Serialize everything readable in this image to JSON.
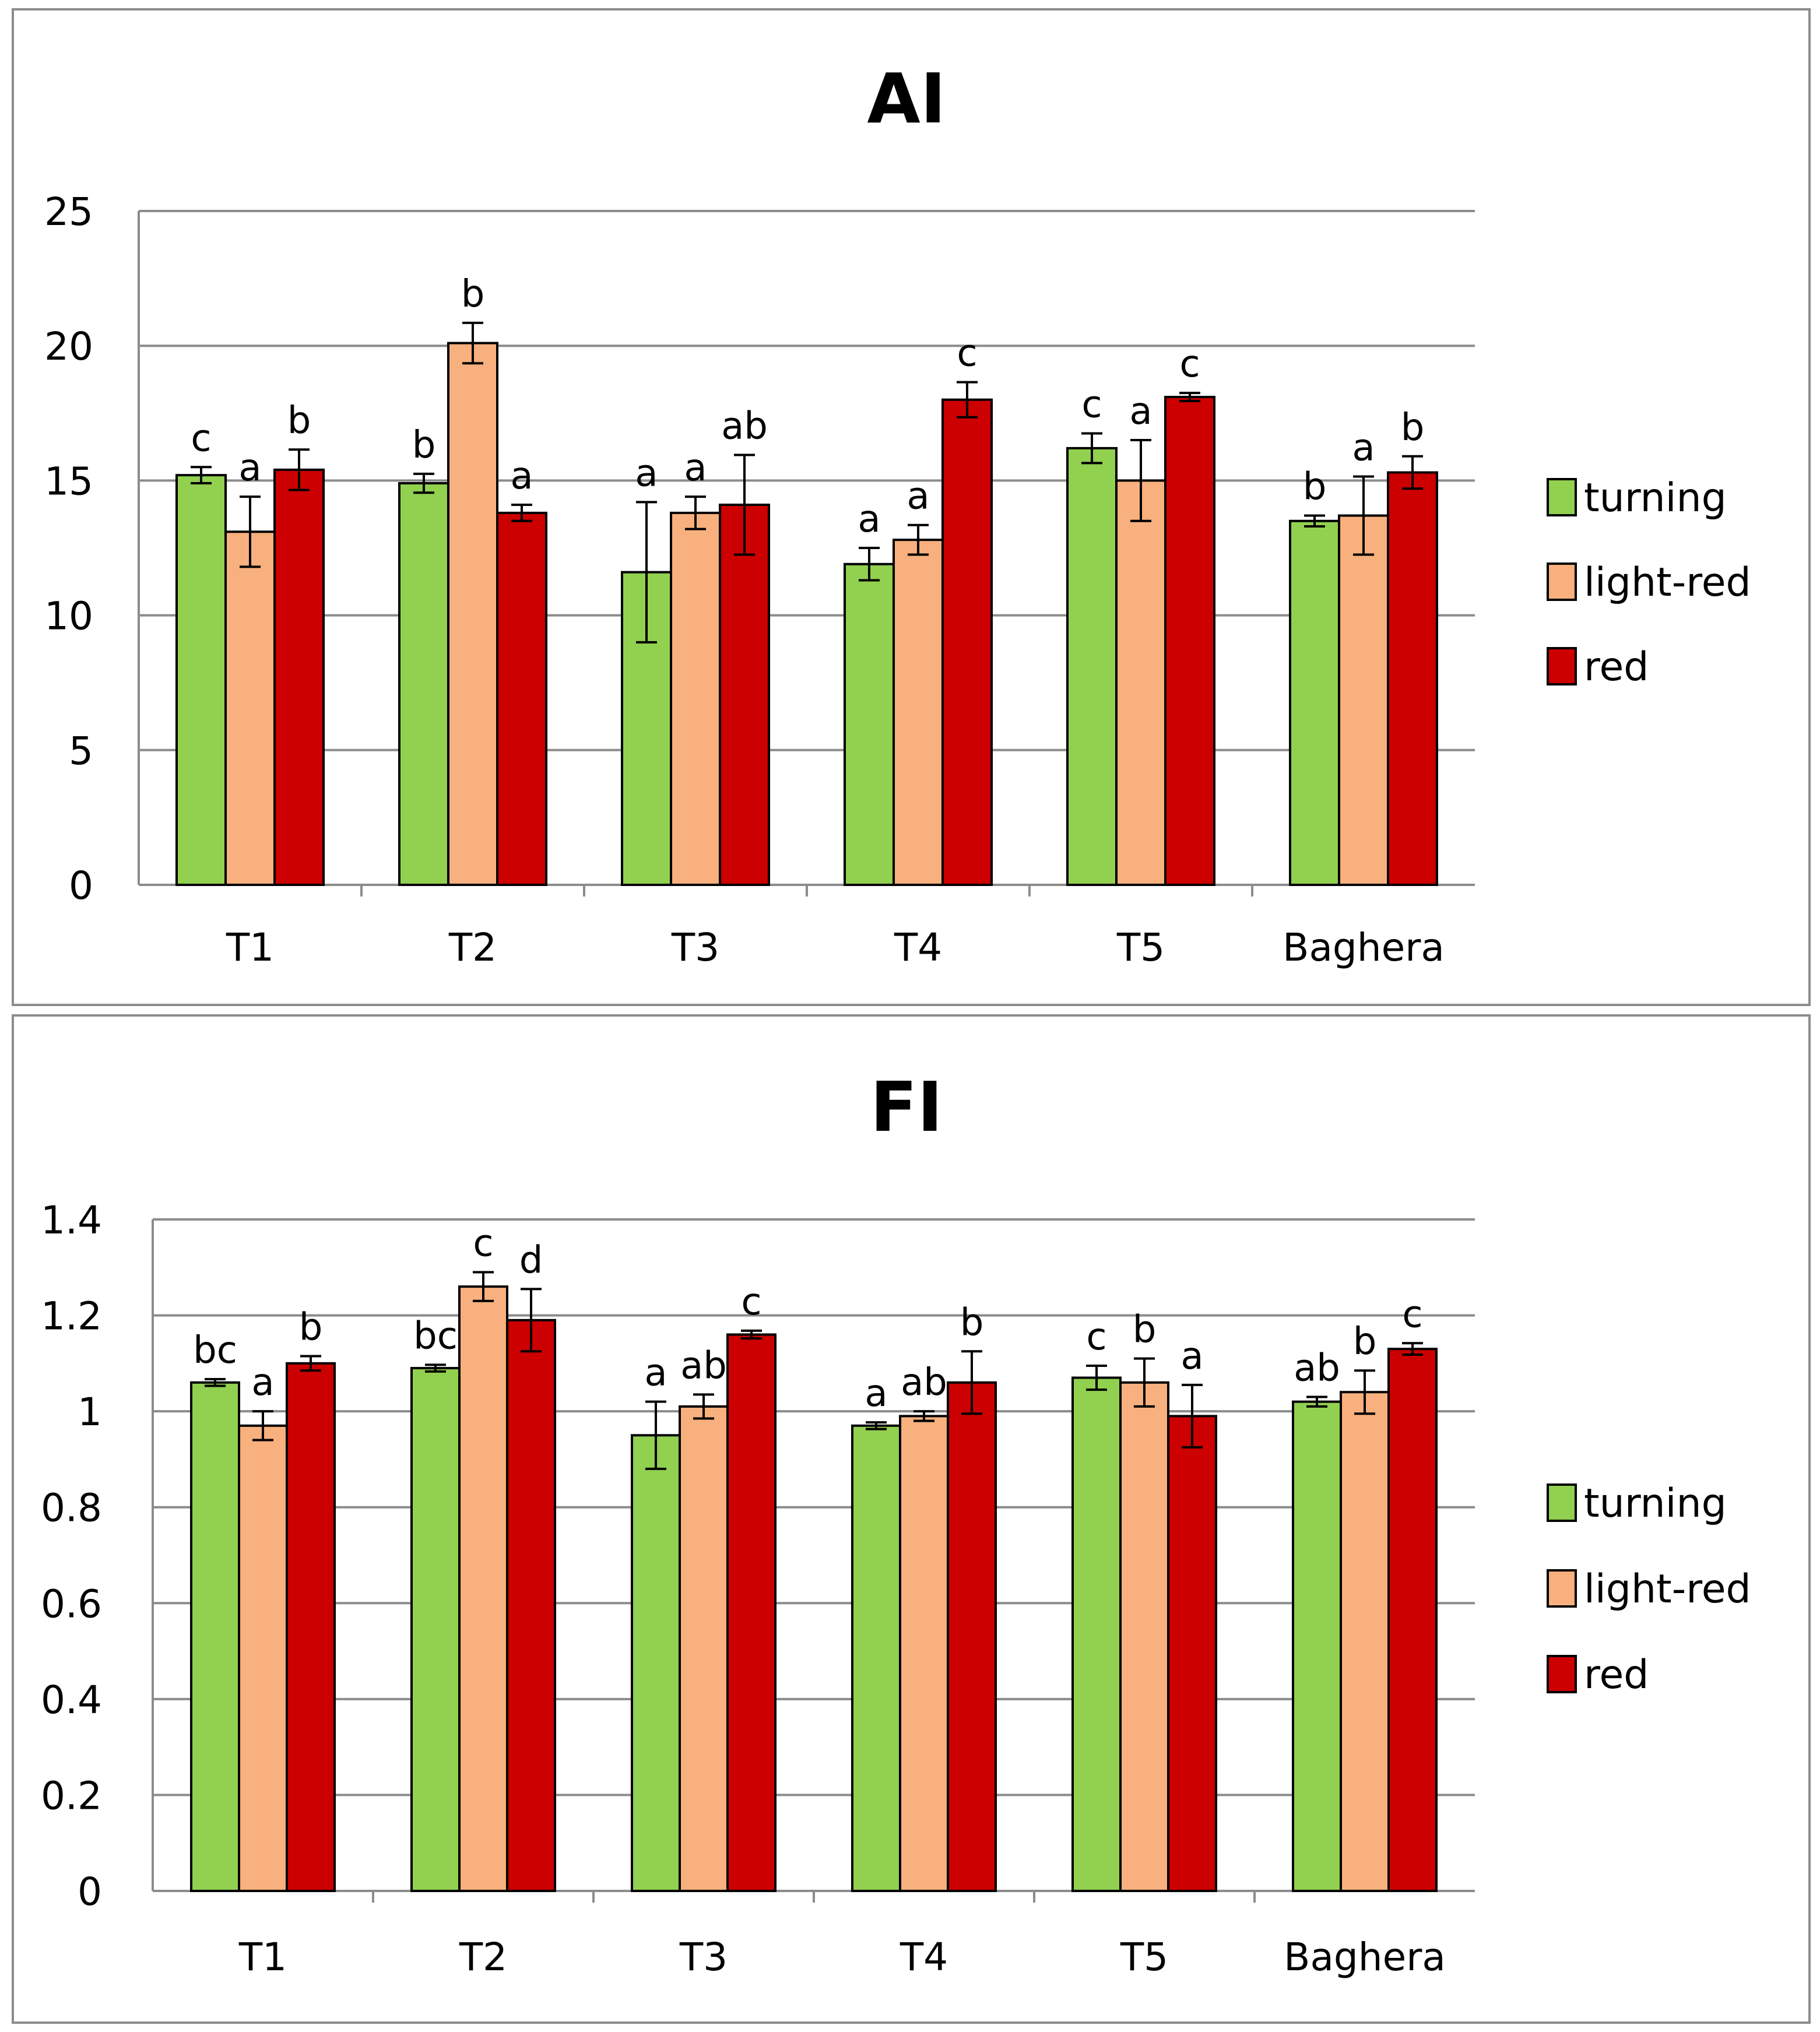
{
  "chart_data": [
    {
      "type": "bar",
      "title": "AI",
      "categories": [
        "T1",
        "T2",
        "T3",
        "T4",
        "T5",
        "Baghera"
      ],
      "series": [
        {
          "name": "turning",
          "color": "#92d050",
          "values": [
            15.2,
            14.9,
            11.6,
            11.9,
            16.2,
            13.5
          ],
          "errors": [
            0.3,
            0.35,
            2.6,
            0.6,
            0.55,
            0.2
          ],
          "labels": [
            "c",
            "b",
            "a",
            "a",
            "c",
            "b"
          ]
        },
        {
          "name": "light-red",
          "color": "#f8b07e",
          "values": [
            13.1,
            20.1,
            13.8,
            12.8,
            15.0,
            13.7
          ],
          "errors": [
            1.3,
            0.75,
            0.6,
            0.55,
            1.5,
            1.45
          ],
          "labels": [
            "a",
            "b",
            "a",
            "a",
            "a",
            "a"
          ]
        },
        {
          "name": "red",
          "color": "#cc0000",
          "values": [
            15.4,
            13.8,
            14.1,
            18.0,
            18.1,
            15.3
          ],
          "errors": [
            0.75,
            0.3,
            1.85,
            0.65,
            0.15,
            0.6
          ],
          "labels": [
            "b",
            "a",
            "ab",
            "c",
            "c",
            "b"
          ]
        }
      ],
      "ylim": [
        0,
        25
      ],
      "yticks": [
        0,
        5,
        10,
        15,
        20,
        25
      ],
      "ytick_labels": [
        "0",
        "5",
        "10",
        "15",
        "20",
        "25"
      ],
      "grid": true,
      "legend": "right"
    },
    {
      "type": "bar",
      "title": "FI",
      "categories": [
        "T1",
        "T2",
        "T3",
        "T4",
        "T5",
        "Baghera"
      ],
      "series": [
        {
          "name": "turning",
          "color": "#92d050",
          "values": [
            1.06,
            1.09,
            0.95,
            0.97,
            1.07,
            1.02
          ],
          "errors": [
            0.007,
            0.007,
            0.07,
            0.007,
            0.025,
            0.01
          ],
          "labels": [
            "bc",
            "bc",
            "a",
            "a",
            "c",
            "ab"
          ]
        },
        {
          "name": "light-red",
          "color": "#f8b07e",
          "values": [
            0.97,
            1.26,
            1.01,
            0.99,
            1.06,
            1.04
          ],
          "errors": [
            0.03,
            0.03,
            0.025,
            0.01,
            0.05,
            0.045
          ],
          "labels": [
            "a",
            "c",
            "ab",
            "ab",
            "b",
            "b"
          ]
        },
        {
          "name": "red",
          "color": "#cc0000",
          "values": [
            1.1,
            1.19,
            1.16,
            1.06,
            0.99,
            1.13
          ],
          "errors": [
            0.015,
            0.065,
            0.008,
            0.065,
            0.065,
            0.012
          ],
          "labels": [
            "b",
            "d",
            "c",
            "b",
            "a",
            "c"
          ]
        }
      ],
      "ylim": [
        0,
        1.4
      ],
      "yticks": [
        0,
        0.2,
        0.4,
        0.6,
        0.8,
        1.0,
        1.2,
        1.4
      ],
      "ytick_labels": [
        "0",
        "0.2",
        "0.4",
        "0.6",
        "0.8",
        "1",
        "1.2",
        "1.4"
      ],
      "grid": true,
      "legend": "right"
    }
  ]
}
